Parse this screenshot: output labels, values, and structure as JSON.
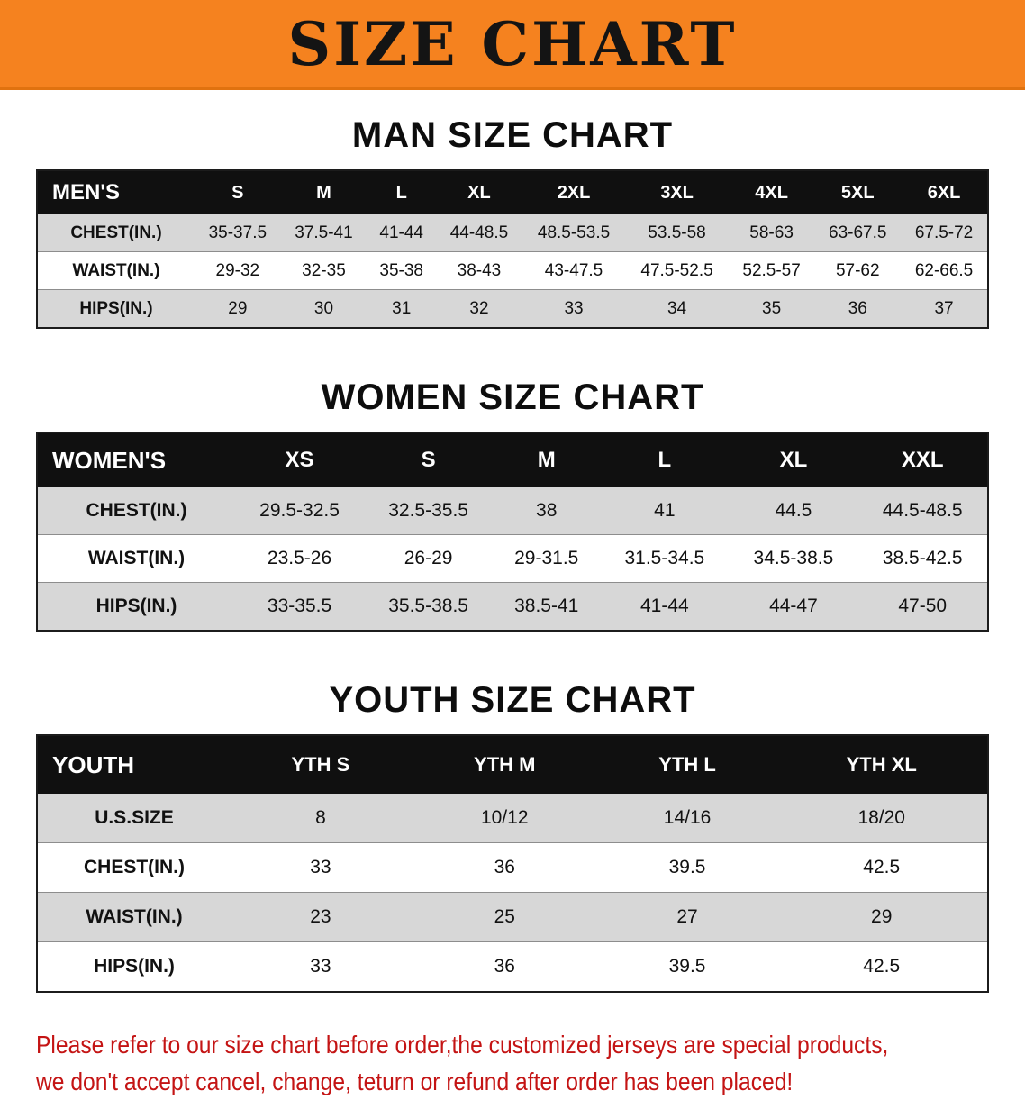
{
  "banner": {
    "title": "SIZE CHART"
  },
  "colors": {
    "banner_bg": "#f5821f",
    "table_header_bg": "#101010",
    "table_header_text": "#ffffff",
    "row_shaded": "#d7d7d7",
    "row_plain": "#ffffff",
    "heading_text": "#0d0d0d",
    "disclaimer_text": "#c41414"
  },
  "sections": [
    {
      "heading": "MAN SIZE CHART",
      "header_row": [
        "MEN'S",
        "S",
        "M",
        "L",
        "XL",
        "2XL",
        "3XL",
        "4XL",
        "5XL",
        "6XL"
      ],
      "rows": [
        [
          "CHEST(IN.)",
          "35-37.5",
          "37.5-41",
          "41-44",
          "44-48.5",
          "48.5-53.5",
          "53.5-58",
          "58-63",
          "63-67.5",
          "67.5-72"
        ],
        [
          "WAIST(IN.)",
          "29-32",
          "32-35",
          "35-38",
          "38-43",
          "43-47.5",
          "47.5-52.5",
          "52.5-57",
          "57-62",
          "62-66.5"
        ],
        [
          "HIPS(IN.)",
          "29",
          "30",
          "31",
          "32",
          "33",
          "34",
          "35",
          "36",
          "37"
        ]
      ]
    },
    {
      "heading": "WOMEN SIZE CHART",
      "header_row": [
        "WOMEN'S",
        "XS",
        "S",
        "M",
        "L",
        "XL",
        "XXL"
      ],
      "rows": [
        [
          "CHEST(IN.)",
          "29.5-32.5",
          "32.5-35.5",
          "38",
          "41",
          "44.5",
          "44.5-48.5"
        ],
        [
          "WAIST(IN.)",
          "23.5-26",
          "26-29",
          "29-31.5",
          "31.5-34.5",
          "34.5-38.5",
          "38.5-42.5"
        ],
        [
          "HIPS(IN.)",
          "33-35.5",
          "35.5-38.5",
          "38.5-41",
          "41-44",
          "44-47",
          "47-50"
        ]
      ]
    },
    {
      "heading": "YOUTH SIZE CHART",
      "header_row": [
        "YOUTH",
        "YTH S",
        "YTH M",
        "YTH L",
        "YTH XL"
      ],
      "rows": [
        [
          "U.S.SIZE",
          "8",
          "10/12",
          "14/16",
          "18/20"
        ],
        [
          "CHEST(IN.)",
          "33",
          "36",
          "39.5",
          "42.5"
        ],
        [
          "WAIST(IN.)",
          "23",
          "25",
          "27",
          "29"
        ],
        [
          "HIPS(IN.)",
          "33",
          "36",
          "39.5",
          "42.5"
        ]
      ]
    }
  ],
  "disclaimer": {
    "line1": "Please refer to our size chart before order,the customized jerseys are special products,",
    "line2": "we don't accept cancel, change, teturn or refund after order has been placed!"
  }
}
